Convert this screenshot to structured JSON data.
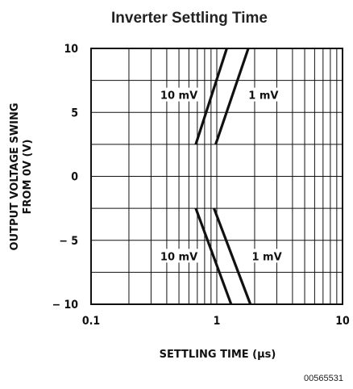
{
  "chart_data": {
    "type": "line",
    "title": "Inverter Settling Time",
    "xlabel": "SETTLING TIME (μs)",
    "ylabel_line1": "OUTPUT VOLTAGE SWING",
    "ylabel_line2": "FROM 0V (V)",
    "x_scale": "log",
    "xlim": [
      0.1,
      10
    ],
    "ylim": [
      -10,
      10
    ],
    "x_ticks": [
      0.1,
      1,
      10
    ],
    "x_tick_labels": [
      "0.1",
      "1",
      "10"
    ],
    "y_ticks": [
      10,
      5,
      0,
      -5,
      -10
    ],
    "y_tick_labels": [
      "10",
      "5",
      "0",
      "− 5",
      "− 10"
    ],
    "grid": true,
    "series": [
      {
        "name": "10 mV",
        "x": [
          0.68,
          1.2
        ],
        "y": [
          2.5,
          10
        ]
      },
      {
        "name": "1 mV",
        "x": [
          0.98,
          1.78
        ],
        "y": [
          2.5,
          10
        ]
      },
      {
        "name": "10 mV",
        "x": [
          0.68,
          1.3
        ],
        "y": [
          -2.5,
          -10
        ]
      },
      {
        "name": "1 mV",
        "x": [
          0.95,
          1.85
        ],
        "y": [
          -2.5,
          -10
        ]
      }
    ],
    "annotations": [
      "10 mV",
      "1 mV",
      "10 mV",
      "1 mV"
    ],
    "figure_code": "00565531"
  }
}
